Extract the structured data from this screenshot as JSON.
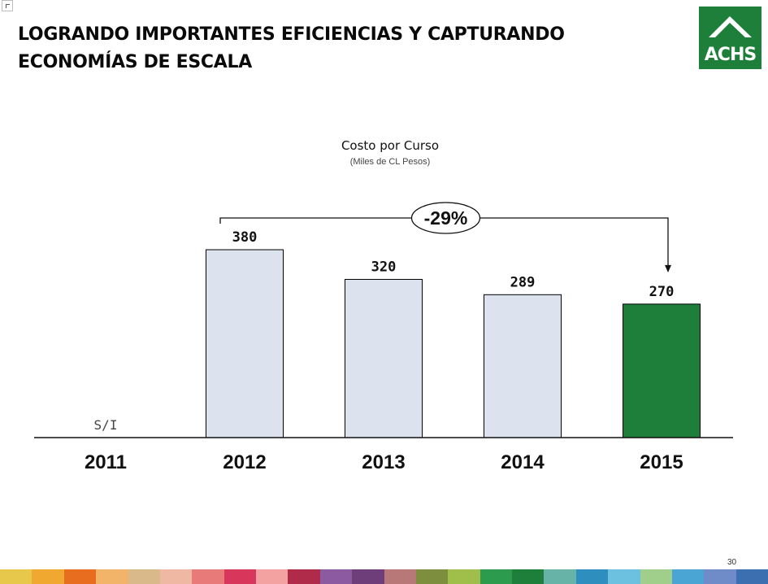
{
  "slide": {
    "title": "LOGRANDO IMPORTANTES EFICIENCIAS Y CAPTURANDO ECONOMÍAS DE ESCALA",
    "logo_text": "ACHS",
    "logo_color": "#1e7f3b",
    "page_number": "30"
  },
  "chart_data": {
    "type": "bar",
    "title": "Costo por Curso",
    "subtitle": "(Miles de CL Pesos)",
    "categories": [
      "2011",
      "2012",
      "2013",
      "2014",
      "2015"
    ],
    "values": [
      null,
      380,
      320,
      289,
      270
    ],
    "data_labels": [
      "S/I",
      "380",
      "320",
      "289",
      "270"
    ],
    "bar_colors": [
      "#dde3ee",
      "#dde3ee",
      "#dde3ee",
      "#dde3ee",
      "#1e7f3b"
    ],
    "annotation": {
      "text": "-29%",
      "from": "2012",
      "to": "2015"
    },
    "grid": false,
    "legend": "none"
  },
  "footer_strip_colors": [
    "#e8c84a",
    "#f0a830",
    "#e86d1f",
    "#f2b469",
    "#d9b98a",
    "#efb8a3",
    "#e97a7a",
    "#d8365b",
    "#f4a1a1",
    "#b02a4a",
    "#8c5aa0",
    "#6d3e7a",
    "#b87878",
    "#7d8f3f",
    "#9fbf4a",
    "#2d9b4e",
    "#1e7f3b",
    "#67b3a8",
    "#2e8fbf",
    "#6cc0e0",
    "#9fcf8a",
    "#4aa5d5",
    "#6f8cc9",
    "#3c6fb0"
  ]
}
